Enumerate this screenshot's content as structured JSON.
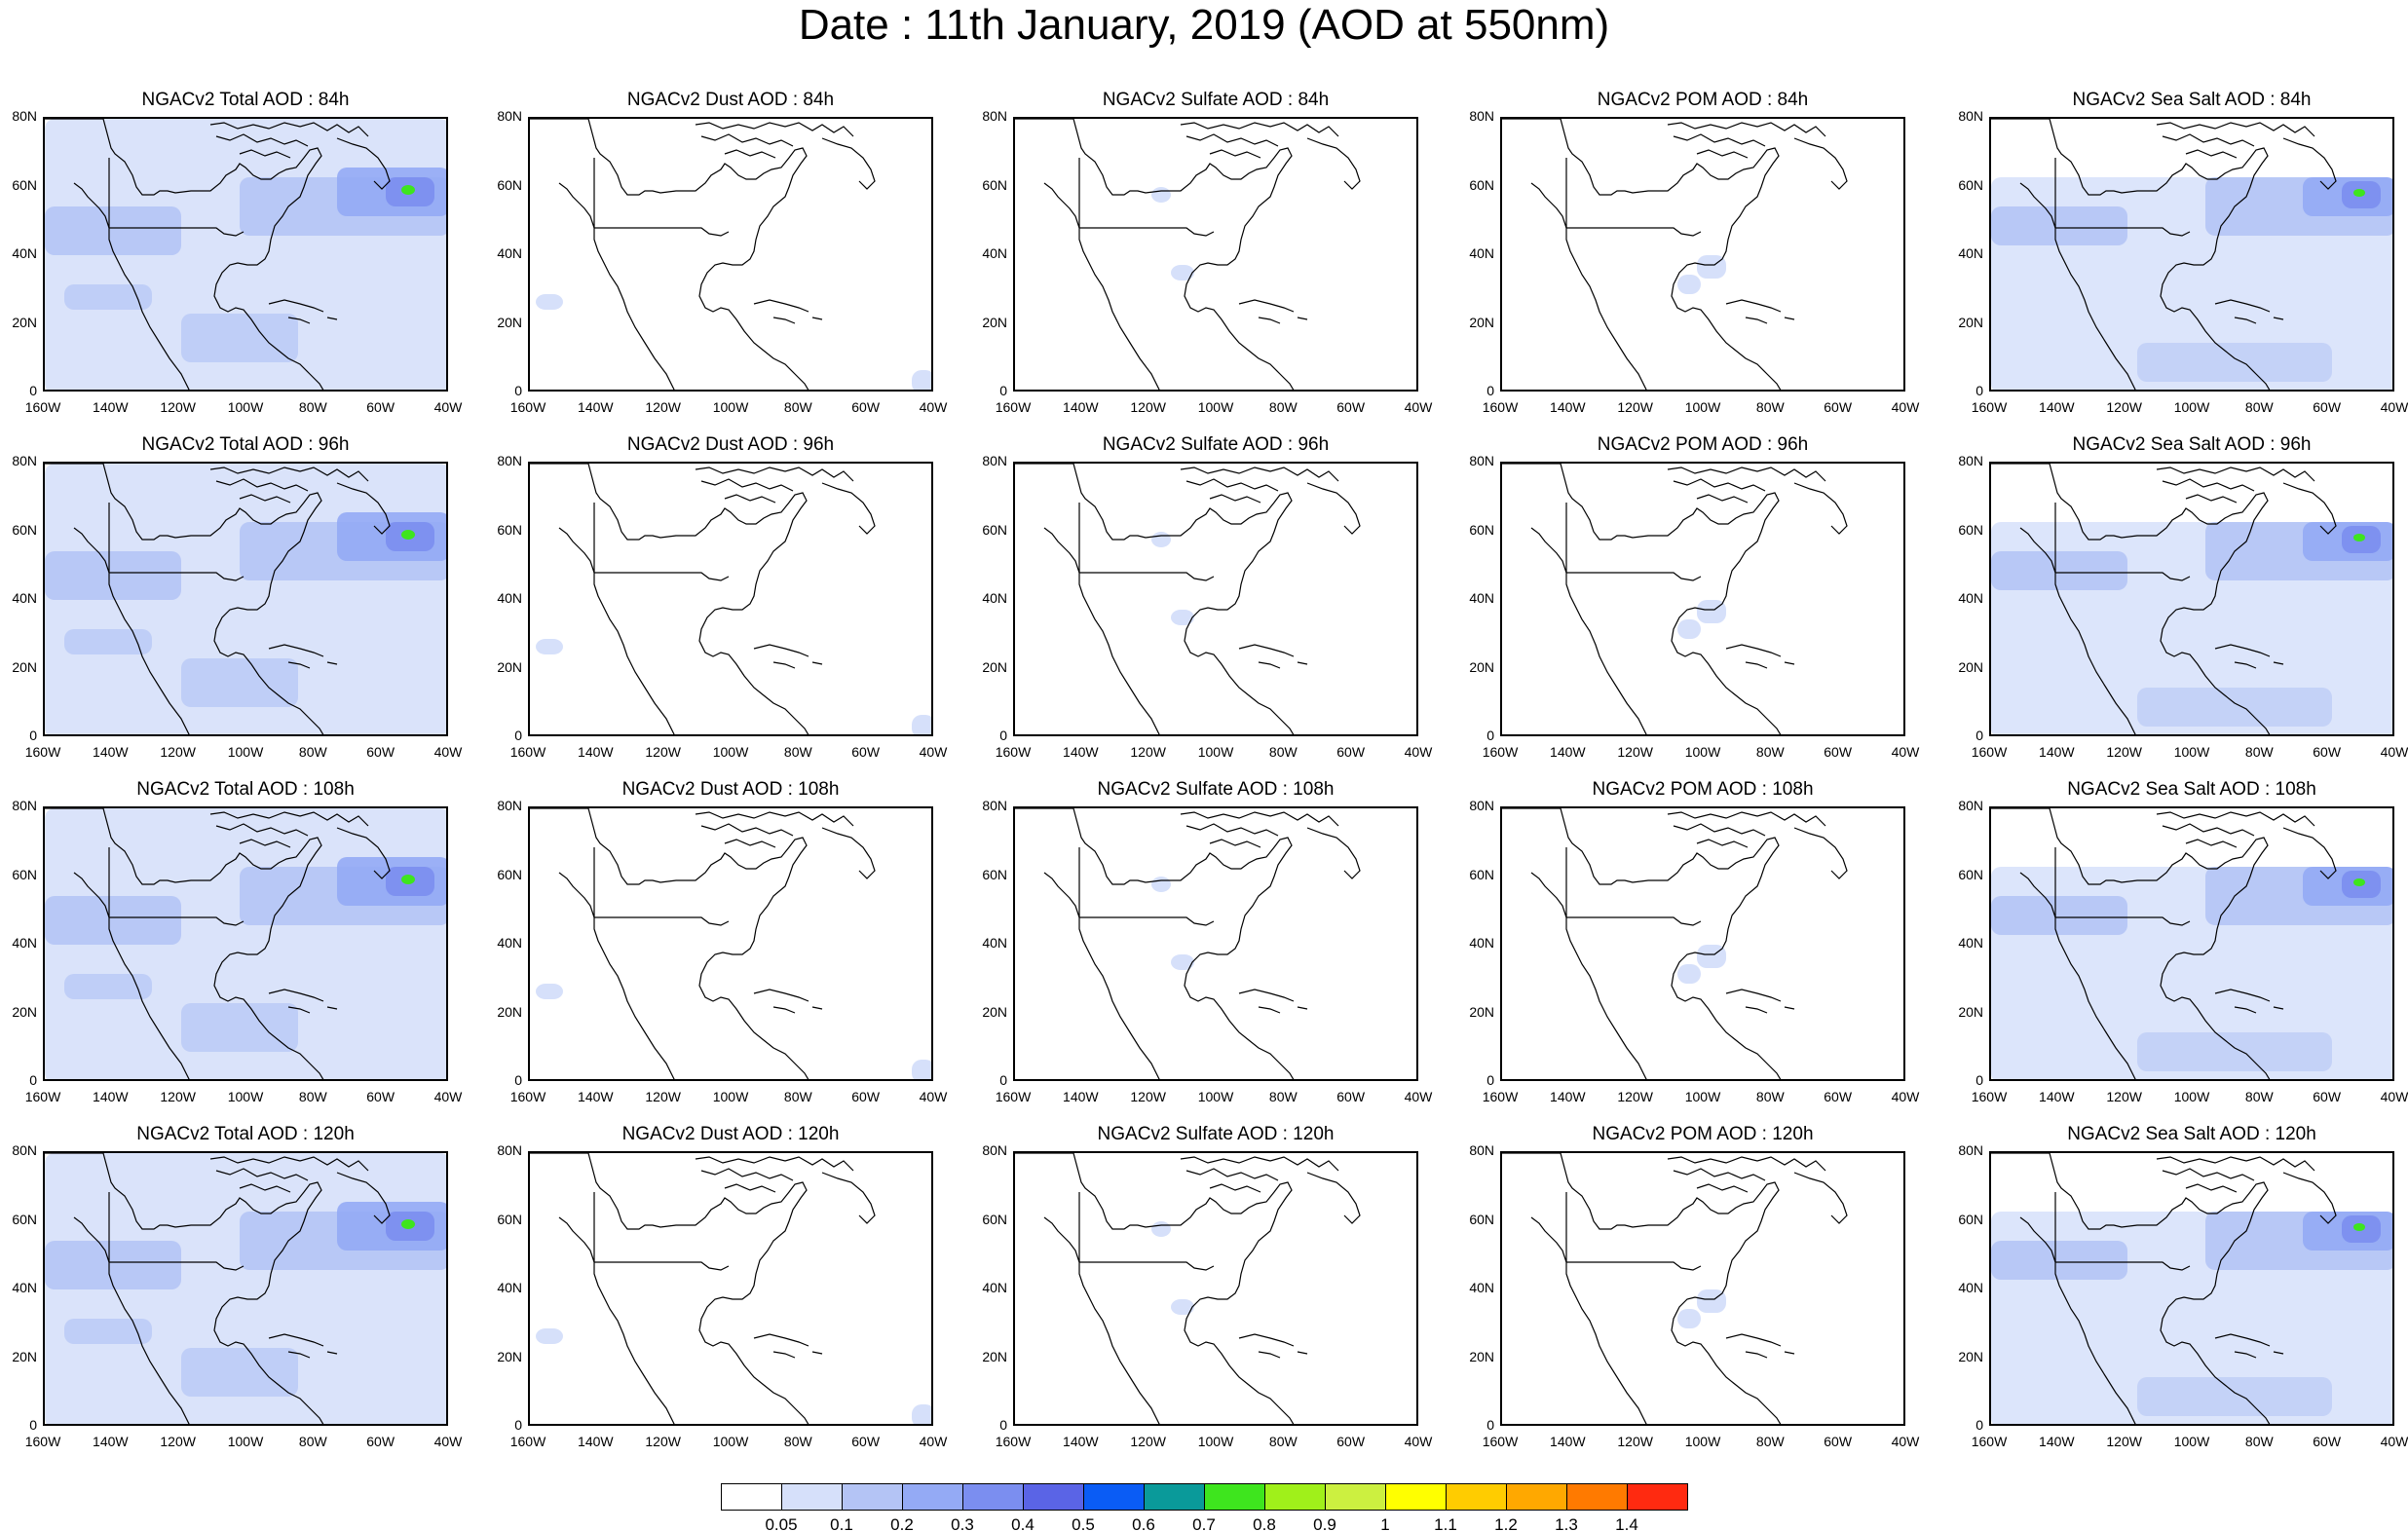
{
  "title": "Date : 11th January, 2019 (AOD at 550nm)",
  "panels": [
    [
      "NGACv2 Total AOD : 84h",
      "NGACv2 Dust AOD : 84h",
      "NGACv2 Sulfate AOD : 84h",
      "NGACv2 POM AOD : 84h",
      "NGACv2 Sea Salt AOD : 84h"
    ],
    [
      "NGACv2 Total AOD : 96h",
      "NGACv2 Dust AOD : 96h",
      "NGACv2 Sulfate AOD : 96h",
      "NGACv2 POM AOD : 96h",
      "NGACv2 Sea Salt AOD : 96h"
    ],
    [
      "NGACv2 Total AOD : 108h",
      "NGACv2 Dust AOD : 108h",
      "NGACv2 Sulfate AOD : 108h",
      "NGACv2 POM AOD : 108h",
      "NGACv2 Sea Salt AOD : 108h"
    ],
    [
      "NGACv2 Total AOD : 120h",
      "NGACv2 Dust AOD : 120h",
      "NGACv2 Sulfate AOD : 120h",
      "NGACv2 POM AOD : 120h",
      "NGACv2 Sea Salt  AOD : 120h"
    ]
  ],
  "lat_ticks": [
    "80N",
    "60N",
    "40N",
    "20N",
    "0"
  ],
  "lon_ticks": [
    "160W",
    "140W",
    "120W",
    "100W",
    "80W",
    "60W",
    "40W"
  ],
  "colorbar": {
    "labels": [
      "0.05",
      "0.1",
      "0.2",
      "0.3",
      "0.4",
      "0.5",
      "0.6",
      "0.7",
      "0.8",
      "0.9",
      "1",
      "1.1",
      "1.2",
      "1.3",
      "1.4"
    ],
    "colors": [
      "#ffffff",
      "#d6e0fa",
      "#b4c4f5",
      "#94aaf5",
      "#7b8ef0",
      "#5a64e6",
      "#0a5cf5",
      "#0a9a9a",
      "#3ee51e",
      "#a0f01a",
      "#ccf040",
      "#ffff00",
      "#ffcc00",
      "#ffa800",
      "#ff7a00",
      "#ff2a10"
    ]
  },
  "colors": {
    "land_outline": "#000000",
    "aod_very_light": "#d6e0fa",
    "aod_light": "#b4c4f5",
    "aod_medium": "#94aaf5",
    "aod_high": "#7b8ef0",
    "aod_peak": "#3ee51e"
  }
}
